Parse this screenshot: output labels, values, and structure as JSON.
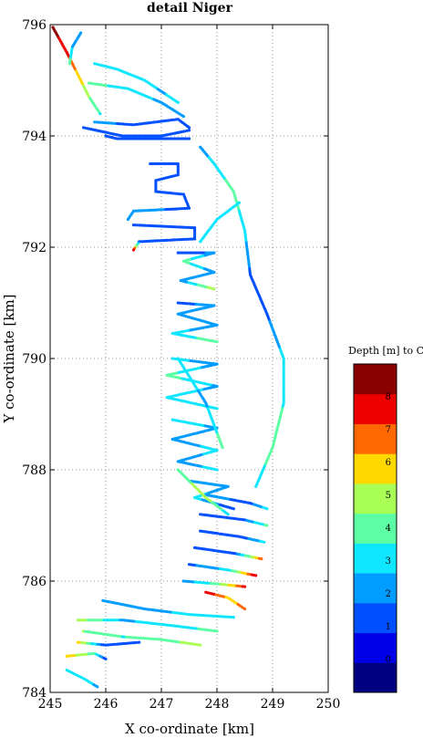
{
  "chart_data": {
    "type": "scatter",
    "title": "detail Niger",
    "xlabel": "X co-ordinate [km]",
    "ylabel": "Y co-ordinate [km]",
    "xlim": [
      245,
      250
    ],
    "ylim": [
      784,
      796
    ],
    "xticks": [
      "245",
      "246",
      "247",
      "248",
      "249",
      "250"
    ],
    "yticks": [
      "784",
      "786",
      "788",
      "790",
      "792",
      "794",
      "796"
    ],
    "grid": true,
    "colorbar": {
      "title": "Depth [m] to CD",
      "range": [
        -1,
        9
      ],
      "ticks": [
        "0",
        "1",
        "2",
        "3",
        "4",
        "5",
        "6",
        "7",
        "8"
      ],
      "colors": [
        "#000080",
        "#0000e6",
        "#0050ff",
        "#009cff",
        "#0fe6ff",
        "#5cffa3",
        "#aaff56",
        "#ffd800",
        "#ff6800",
        "#ee0000",
        "#8b0000"
      ]
    },
    "tracks": [
      {
        "points": [
          [
            245.05,
            795.95,
            8.5
          ],
          [
            245.3,
            795.5,
            7.5
          ],
          [
            245.5,
            795.1,
            6
          ],
          [
            245.7,
            794.7,
            4.5
          ],
          [
            245.9,
            794.4,
            3.5
          ]
        ]
      },
      {
        "points": [
          [
            245.55,
            795.85,
            2.5
          ],
          [
            245.4,
            795.6,
            2.5
          ],
          [
            245.35,
            795.3,
            4
          ]
        ]
      },
      {
        "points": [
          [
            245.8,
            795.3,
            3.5
          ],
          [
            246.2,
            795.2,
            3
          ],
          [
            246.7,
            795.0,
            3
          ],
          [
            247.0,
            794.8,
            2.5
          ],
          [
            247.3,
            794.6,
            3
          ]
        ]
      },
      {
        "points": [
          [
            245.7,
            794.95,
            4
          ],
          [
            246.4,
            794.85,
            3
          ],
          [
            247.0,
            794.6,
            2.5
          ],
          [
            247.4,
            794.35,
            2
          ]
        ]
      },
      {
        "points": [
          [
            245.8,
            794.25,
            2
          ],
          [
            246.5,
            794.2,
            1.5
          ],
          [
            247.3,
            794.3,
            1.5
          ],
          [
            247.5,
            794.15,
            1
          ]
        ]
      },
      {
        "points": [
          [
            245.6,
            794.15,
            1
          ],
          [
            246.3,
            794.0,
            1.5
          ],
          [
            247.0,
            794.0,
            1
          ],
          [
            247.5,
            794.1,
            1
          ]
        ]
      },
      {
        "points": [
          [
            246.0,
            794.0,
            1
          ],
          [
            246.2,
            793.95,
            1
          ],
          [
            247.5,
            793.95,
            1
          ]
        ]
      },
      {
        "points": [
          [
            246.8,
            793.5,
            1
          ],
          [
            247.3,
            793.5,
            1
          ],
          [
            247.3,
            793.3,
            1
          ],
          [
            246.9,
            793.2,
            1
          ],
          [
            246.9,
            793.0,
            1.5
          ],
          [
            247.4,
            792.95,
            1
          ],
          [
            247.5,
            792.7,
            1.5
          ],
          [
            246.5,
            792.65,
            2
          ],
          [
            246.4,
            792.5,
            2
          ]
        ]
      },
      {
        "points": [
          [
            246.5,
            792.4,
            1
          ],
          [
            247.6,
            792.35,
            1.5
          ],
          [
            247.6,
            792.15,
            1
          ],
          [
            246.6,
            792.1,
            1.5
          ],
          [
            246.5,
            791.95,
            7.5
          ]
        ]
      },
      {
        "points": [
          [
            247.3,
            791.9,
            1
          ],
          [
            247.95,
            791.9,
            2
          ],
          [
            247.4,
            791.75,
            4
          ],
          [
            247.95,
            791.55,
            2
          ],
          [
            247.35,
            791.4,
            2
          ],
          [
            247.95,
            791.25,
            5
          ]
        ]
      },
      {
        "points": [
          [
            247.3,
            791.0,
            1
          ],
          [
            247.95,
            790.95,
            2.5
          ],
          [
            247.3,
            790.8,
            2
          ],
          [
            248.0,
            790.6,
            2
          ],
          [
            247.2,
            790.45,
            3
          ],
          [
            248.0,
            790.3,
            4
          ]
        ]
      },
      {
        "points": [
          [
            247.2,
            790.0,
            3
          ],
          [
            248.0,
            789.9,
            2
          ],
          [
            247.1,
            789.7,
            4
          ],
          [
            248.0,
            789.5,
            2.5
          ],
          [
            247.1,
            789.3,
            3
          ],
          [
            248.0,
            789.1,
            3
          ]
        ]
      },
      {
        "points": [
          [
            247.2,
            788.9,
            3
          ],
          [
            248.0,
            788.75,
            2.5
          ],
          [
            247.2,
            788.55,
            2
          ],
          [
            248.0,
            788.35,
            3
          ],
          [
            247.3,
            788.15,
            2
          ],
          [
            248.0,
            788.0,
            3
          ]
        ]
      },
      {
        "points": [
          [
            247.5,
            787.8,
            2
          ],
          [
            248.2,
            787.7,
            2
          ],
          [
            247.6,
            787.5,
            3
          ],
          [
            248.3,
            787.3,
            1
          ]
        ]
      },
      {
        "points": [
          [
            247.8,
            787.55,
            2
          ],
          [
            248.6,
            787.4,
            1.5
          ],
          [
            248.9,
            787.3,
            3
          ]
        ]
      },
      {
        "points": [
          [
            247.7,
            787.2,
            1.5
          ],
          [
            248.5,
            787.1,
            1.5
          ],
          [
            248.9,
            787.0,
            4
          ]
        ]
      },
      {
        "points": [
          [
            247.7,
            786.9,
            1
          ],
          [
            248.4,
            786.8,
            1
          ],
          [
            248.85,
            786.7,
            3
          ]
        ]
      },
      {
        "points": [
          [
            247.6,
            786.6,
            1
          ],
          [
            248.3,
            786.5,
            1
          ],
          [
            248.8,
            786.4,
            7
          ]
        ]
      },
      {
        "points": [
          [
            247.5,
            786.3,
            1.5
          ],
          [
            248.2,
            786.2,
            3
          ],
          [
            248.7,
            786.1,
            8
          ]
        ]
      },
      {
        "points": [
          [
            247.4,
            786.0,
            2
          ],
          [
            248.0,
            785.95,
            4
          ],
          [
            248.5,
            785.9,
            7.5
          ]
        ]
      },
      {
        "points": [
          [
            247.8,
            785.8,
            8
          ],
          [
            248.2,
            785.7,
            6
          ],
          [
            248.5,
            785.5,
            6.5
          ]
        ]
      },
      {
        "points": [
          [
            245.95,
            785.65,
            2
          ],
          [
            246.7,
            785.5,
            2
          ],
          [
            247.5,
            785.4,
            3
          ],
          [
            248.3,
            785.35,
            3
          ]
        ]
      },
      {
        "points": [
          [
            245.5,
            785.3,
            5
          ],
          [
            246.3,
            785.3,
            2.5
          ],
          [
            247.2,
            785.2,
            3
          ],
          [
            248.0,
            785.1,
            4
          ]
        ]
      },
      {
        "points": [
          [
            245.6,
            785.1,
            4.5
          ],
          [
            246.3,
            785.0,
            3.5
          ],
          [
            247.0,
            784.95,
            4
          ],
          [
            247.7,
            784.85,
            5
          ]
        ]
      },
      {
        "points": [
          [
            245.5,
            784.9,
            6
          ],
          [
            246.0,
            784.85,
            1
          ],
          [
            246.6,
            784.9,
            1.5
          ]
        ]
      },
      {
        "points": [
          [
            245.3,
            784.65,
            6
          ],
          [
            245.8,
            784.7,
            4
          ],
          [
            246.0,
            784.6,
            1
          ]
        ]
      },
      {
        "points": [
          [
            245.3,
            784.4,
            3
          ],
          [
            245.6,
            784.25,
            3
          ],
          [
            245.85,
            784.1,
            2.5
          ]
        ]
      },
      {
        "points": [
          [
            247.7,
            793.8,
            2
          ],
          [
            247.95,
            793.5,
            3
          ],
          [
            248.3,
            793.0,
            4
          ],
          [
            248.5,
            792.3,
            3
          ],
          [
            248.6,
            791.5,
            1.5
          ],
          [
            248.9,
            790.8,
            1.5
          ],
          [
            249.2,
            790.0,
            3
          ],
          [
            249.2,
            789.2,
            3.5
          ],
          [
            249.0,
            788.4,
            4
          ],
          [
            248.7,
            787.7,
            3
          ]
        ]
      },
      {
        "points": [
          [
            247.7,
            792.1,
            3
          ],
          [
            248.0,
            792.5,
            3
          ],
          [
            248.4,
            792.8,
            3.5
          ]
        ]
      },
      {
        "points": [
          [
            247.3,
            790.0,
            3
          ],
          [
            247.8,
            789.2,
            2.5
          ],
          [
            248.1,
            788.4,
            4
          ]
        ]
      },
      {
        "points": [
          [
            247.3,
            788.0,
            4
          ],
          [
            247.8,
            787.5,
            5
          ],
          [
            248.2,
            787.2,
            3
          ]
        ]
      }
    ]
  }
}
